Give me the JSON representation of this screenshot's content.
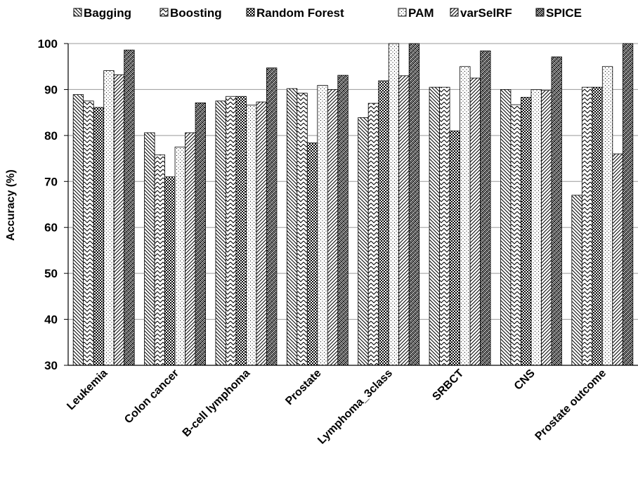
{
  "chart_data": {
    "type": "bar",
    "title": "",
    "xlabel": "",
    "ylabel": "Accuracy (%)",
    "ylim": [
      30,
      100
    ],
    "yticks": [
      30,
      40,
      50,
      60,
      70,
      80,
      90,
      100
    ],
    "grid": true,
    "legend_position": "top",
    "categories": [
      "Leukemia",
      "Colon cancer",
      "B-cell lymphoma",
      "Prostate",
      "Lymphoma_3class",
      "SRBCT",
      "CNS",
      "Prostate outcome"
    ],
    "series": [
      {
        "name": "Bagging",
        "pattern": "diag-down-dense",
        "values": [
          88.9,
          80.6,
          87.5,
          90.2,
          83.9,
          90.5,
          90.0,
          67.0
        ]
      },
      {
        "name": "Boosting",
        "pattern": "zigzag",
        "values": [
          87.5,
          75.8,
          88.5,
          89.2,
          87.0,
          90.5,
          86.7,
          90.5
        ]
      },
      {
        "name": "Random Forest",
        "pattern": "checker",
        "values": [
          86.1,
          71.0,
          88.5,
          78.4,
          91.9,
          81.0,
          88.3,
          90.5
        ]
      },
      {
        "name": "PAM",
        "pattern": "dots",
        "values": [
          94.1,
          77.5,
          86.6,
          90.9,
          100.0,
          95.0,
          90.0,
          95.0
        ]
      },
      {
        "name": "varSelRF",
        "pattern": "diag-up",
        "values": [
          93.2,
          80.6,
          87.3,
          90.0,
          93.0,
          92.5,
          89.8,
          76.0
        ]
      },
      {
        "name": "SPICE",
        "pattern": "wave",
        "values": [
          98.6,
          87.1,
          94.7,
          93.1,
          100.0,
          98.4,
          97.1,
          100.0
        ]
      }
    ]
  }
}
